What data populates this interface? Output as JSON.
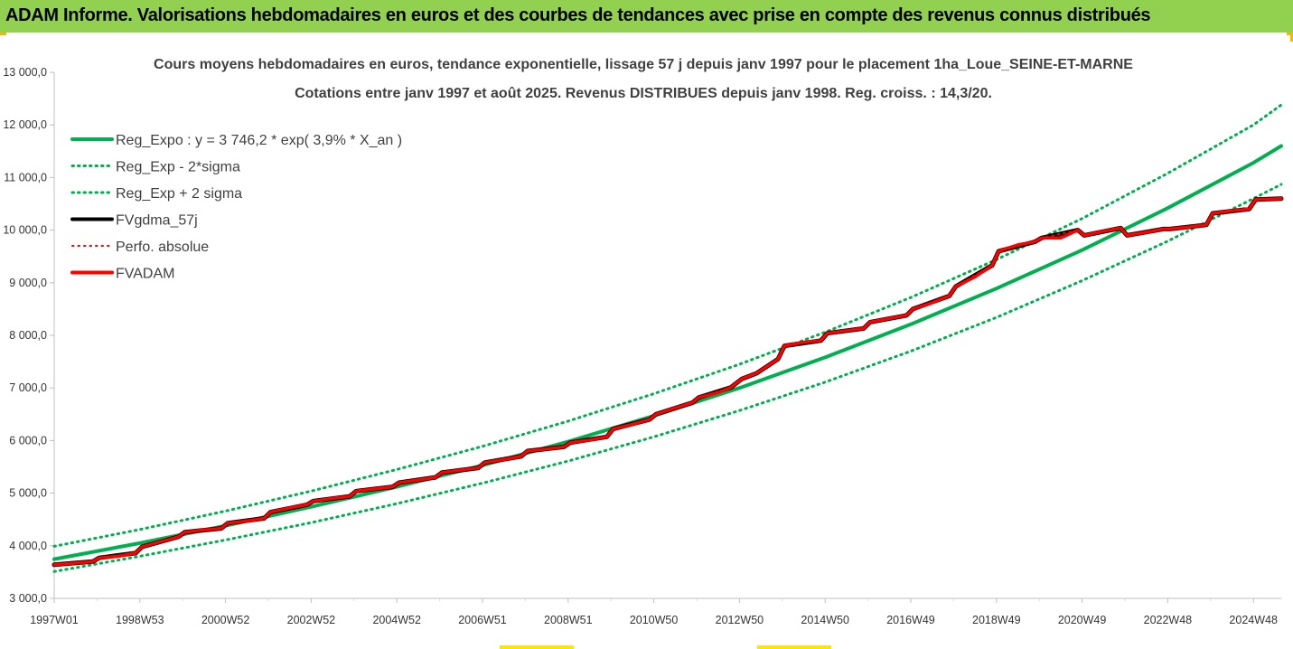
{
  "header": {
    "title": "ADAM Informe. Valorisations hebdomadaires en euros et des courbes de tendances avec prise en compte des revenus connus distribués"
  },
  "chart_data": {
    "type": "line",
    "title_lines": [
      "Cours moyens hebdomadaires en euros, tendance exponentielle, lissage 57 j depuis janv 1997  pour le placement 1ha_Loue_SEINE-ET-MARNE",
      "Cotations entre janv 1997 et août 2025. Revenus DISTRIBUES depuis janv 1998. Reg. croiss. : 14,3/20."
    ],
    "xlabel": "",
    "ylabel": "",
    "ylim": [
      3000,
      13000
    ],
    "xlim": [
      1997.0,
      2025.65
    ],
    "grid": false,
    "legend_position": "top-left",
    "y_tick_labels": [
      "3 000,0",
      "4 000,0",
      "5 000,0",
      "6 000,0",
      "7 000,0",
      "8 000,0",
      "9 000,0",
      "10 000,0",
      "11 000,0",
      "12 000,0",
      "13 000,0"
    ],
    "x_tick_labels": [
      "1997W01",
      "1998W53",
      "2000W52",
      "2002W52",
      "2004W52",
      "2006W51",
      "2008W51",
      "2010W50",
      "2012W50",
      "2014W50",
      "2016W49",
      "2018W49",
      "2020W49",
      "2022W48",
      "2024W48"
    ],
    "x_tick_positions": [
      1997.0,
      1999.0,
      2001.0,
      2003.0,
      2005.0,
      2007.0,
      2009.0,
      2011.0,
      2013.0,
      2015.0,
      2017.0,
      2019.0,
      2021.0,
      2023.0,
      2025.0
    ],
    "series": [
      {
        "name": "Reg_Expo : y = 3 746,2 * exp( 3,9% *  X_an )",
        "color": "#00b050",
        "style": "solid",
        "x": [
          1997.0,
          1999.0,
          2001.0,
          2003.0,
          2005.0,
          2007.0,
          2009.0,
          2011.0,
          2013.0,
          2015.0,
          2017.0,
          2019.0,
          2021.0,
          2023.0,
          2025.0,
          2025.65
        ],
        "y": [
          3746,
          4050,
          4380,
          4740,
          5120,
          5530,
          5980,
          6470,
          7000,
          7580,
          8210,
          8890,
          9620,
          10420,
          11280,
          11600
        ]
      },
      {
        "name": "Reg_Exp - 2*sigma",
        "color": "#00b050",
        "style": "dotted",
        "x": [
          1997.0,
          1999.0,
          2001.0,
          2003.0,
          2005.0,
          2007.0,
          2009.0,
          2011.0,
          2013.0,
          2015.0,
          2017.0,
          2019.0,
          2021.0,
          2023.0,
          2025.0,
          2025.65
        ],
        "y": [
          3510,
          3800,
          4110,
          4440,
          4800,
          5190,
          5610,
          6070,
          6570,
          7110,
          7700,
          8340,
          9040,
          9790,
          10600,
          10870
        ]
      },
      {
        "name": "Reg_Exp + 2 sigma",
        "color": "#00b050",
        "style": "dotted",
        "x": [
          1997.0,
          1999.0,
          2001.0,
          2003.0,
          2005.0,
          2007.0,
          2009.0,
          2011.0,
          2013.0,
          2015.0,
          2017.0,
          2019.0,
          2021.0,
          2023.0,
          2025.0,
          2025.65
        ],
        "y": [
          3990,
          4310,
          4660,
          5040,
          5450,
          5890,
          6370,
          6890,
          7450,
          8060,
          8720,
          9440,
          10220,
          11080,
          12000,
          12380
        ]
      },
      {
        "name": "FVgdma_57j",
        "color": "#000000",
        "style": "solid",
        "x": [
          1997.0,
          1997.9,
          1998.05,
          1998.9,
          1999.05,
          1999.9,
          2000.05,
          2000.9,
          2001.05,
          2001.9,
          2002.05,
          2002.9,
          2003.05,
          2003.9,
          2004.05,
          2004.9,
          2005.05,
          2005.9,
          2006.05,
          2006.9,
          2007.05,
          2007.9,
          2008.05,
          2008.9,
          2009.05,
          2009.9,
          2010.05,
          2010.9,
          2011.05,
          2011.9,
          2012.05,
          2012.8,
          2013.05,
          2013.4,
          2013.9,
          2014.05,
          2014.9,
          2015.05,
          2015.9,
          2016.05,
          2016.9,
          2017.05,
          2017.9,
          2018.05,
          2018.9,
          2019.05,
          2019.9,
          2020.05,
          2020.9,
          2021.05,
          2021.9,
          2022.05,
          2022.9,
          2023.05,
          2023.9,
          2024.05,
          2024.9,
          2025.05,
          2025.65
        ],
        "y": [
          3640,
          3700,
          3770,
          3860,
          3980,
          4170,
          4260,
          4330,
          4430,
          4520,
          4640,
          4780,
          4850,
          4940,
          5040,
          5120,
          5200,
          5300,
          5390,
          5480,
          5580,
          5700,
          5800,
          5880,
          5960,
          6070,
          6220,
          6400,
          6500,
          6720,
          6820,
          7010,
          7170,
          7280,
          7550,
          7800,
          7900,
          8040,
          8130,
          8250,
          8380,
          8500,
          8750,
          8930,
          9330,
          9600,
          9780,
          9850,
          10000,
          9900,
          10040,
          9900,
          10020,
          10020,
          10100,
          10320,
          10400,
          10580,
          10600
        ]
      },
      {
        "name": "Perfo. absolue",
        "color": "#ff0000",
        "style": "dotted",
        "x": [
          1997.0,
          1997.9,
          1998.05,
          1998.9,
          1999.05,
          1999.9,
          2000.05,
          2000.9,
          2001.05,
          2001.9,
          2002.05,
          2002.9,
          2003.05,
          2003.9,
          2004.05,
          2004.9,
          2005.05,
          2005.9,
          2006.05,
          2006.9,
          2007.05,
          2007.9,
          2008.05,
          2008.9,
          2009.05,
          2009.9,
          2010.05,
          2010.9,
          2011.05,
          2011.9,
          2012.05,
          2012.8,
          2013.05,
          2013.4,
          2013.9,
          2014.05,
          2014.9,
          2015.05,
          2015.9,
          2016.05,
          2016.9,
          2017.05,
          2017.9,
          2018.05,
          2018.9,
          2019.05,
          2019.9,
          2020.05,
          2020.9,
          2021.05,
          2021.9,
          2022.05,
          2022.9,
          2023.05,
          2023.9,
          2024.05,
          2024.9,
          2025.05,
          2025.65
        ],
        "y": [
          3640,
          3700,
          3770,
          3860,
          3980,
          4170,
          4260,
          4330,
          4430,
          4520,
          4640,
          4780,
          4850,
          4940,
          5040,
          5120,
          5200,
          5300,
          5390,
          5480,
          5580,
          5700,
          5800,
          5880,
          5960,
          6070,
          6220,
          6400,
          6500,
          6720,
          6820,
          7010,
          7170,
          7280,
          7550,
          7800,
          7900,
          8040,
          8130,
          8250,
          8380,
          8500,
          8750,
          8930,
          9330,
          9600,
          9780,
          9850,
          10000,
          9900,
          10040,
          9900,
          10020,
          10020,
          10100,
          10320,
          10400,
          10580,
          10600
        ]
      },
      {
        "name": "FVADAM",
        "color": "#ff0000",
        "style": "solid",
        "x": [
          1997.0,
          1997.5,
          1997.9,
          1998.05,
          1998.5,
          1998.9,
          1999.05,
          1999.5,
          1999.9,
          2000.05,
          2000.5,
          2000.9,
          2001.05,
          2001.5,
          2001.9,
          2002.05,
          2002.5,
          2002.9,
          2003.05,
          2003.5,
          2003.9,
          2004.05,
          2004.5,
          2004.9,
          2005.05,
          2005.5,
          2005.9,
          2006.05,
          2006.5,
          2006.9,
          2007.05,
          2007.5,
          2007.9,
          2008.05,
          2008.5,
          2008.9,
          2009.05,
          2009.5,
          2009.9,
          2010.05,
          2010.5,
          2010.9,
          2011.05,
          2011.5,
          2011.9,
          2012.05,
          2012.5,
          2012.8,
          2013.05,
          2013.4,
          2013.9,
          2014.05,
          2014.5,
          2014.9,
          2015.05,
          2015.5,
          2015.9,
          2016.05,
          2016.5,
          2016.9,
          2017.05,
          2017.5,
          2017.9,
          2018.05,
          2018.5,
          2018.9,
          2019.05,
          2019.5,
          2019.9,
          2020.05,
          2020.5,
          2020.9,
          2021.05,
          2021.5,
          2021.9,
          2022.05,
          2022.5,
          2022.9,
          2023.05,
          2023.5,
          2023.9,
          2024.05,
          2024.5,
          2024.9,
          2025.05,
          2025.65
        ],
        "y": [
          3640,
          3670,
          3700,
          3770,
          3800,
          3860,
          3980,
          4080,
          4170,
          4260,
          4300,
          4330,
          4430,
          4470,
          4520,
          4640,
          4720,
          4780,
          4850,
          4900,
          4940,
          5040,
          5080,
          5120,
          5200,
          5250,
          5300,
          5390,
          5440,
          5480,
          5580,
          5640,
          5700,
          5800,
          5840,
          5880,
          5960,
          6010,
          6070,
          6220,
          6310,
          6400,
          6500,
          6620,
          6720,
          6820,
          6910,
          7010,
          7170,
          7280,
          7550,
          7800,
          7870,
          7900,
          8040,
          8090,
          8130,
          8250,
          8320,
          8380,
          8500,
          8620,
          8750,
          8930,
          9110,
          9330,
          9600,
          9720,
          9780,
          9850,
          9850,
          10000,
          9900,
          9980,
          10040,
          9900,
          9960,
          10020,
          10020,
          10060,
          10100,
          10320,
          10370,
          10400,
          10580,
          10600
        ]
      }
    ]
  }
}
